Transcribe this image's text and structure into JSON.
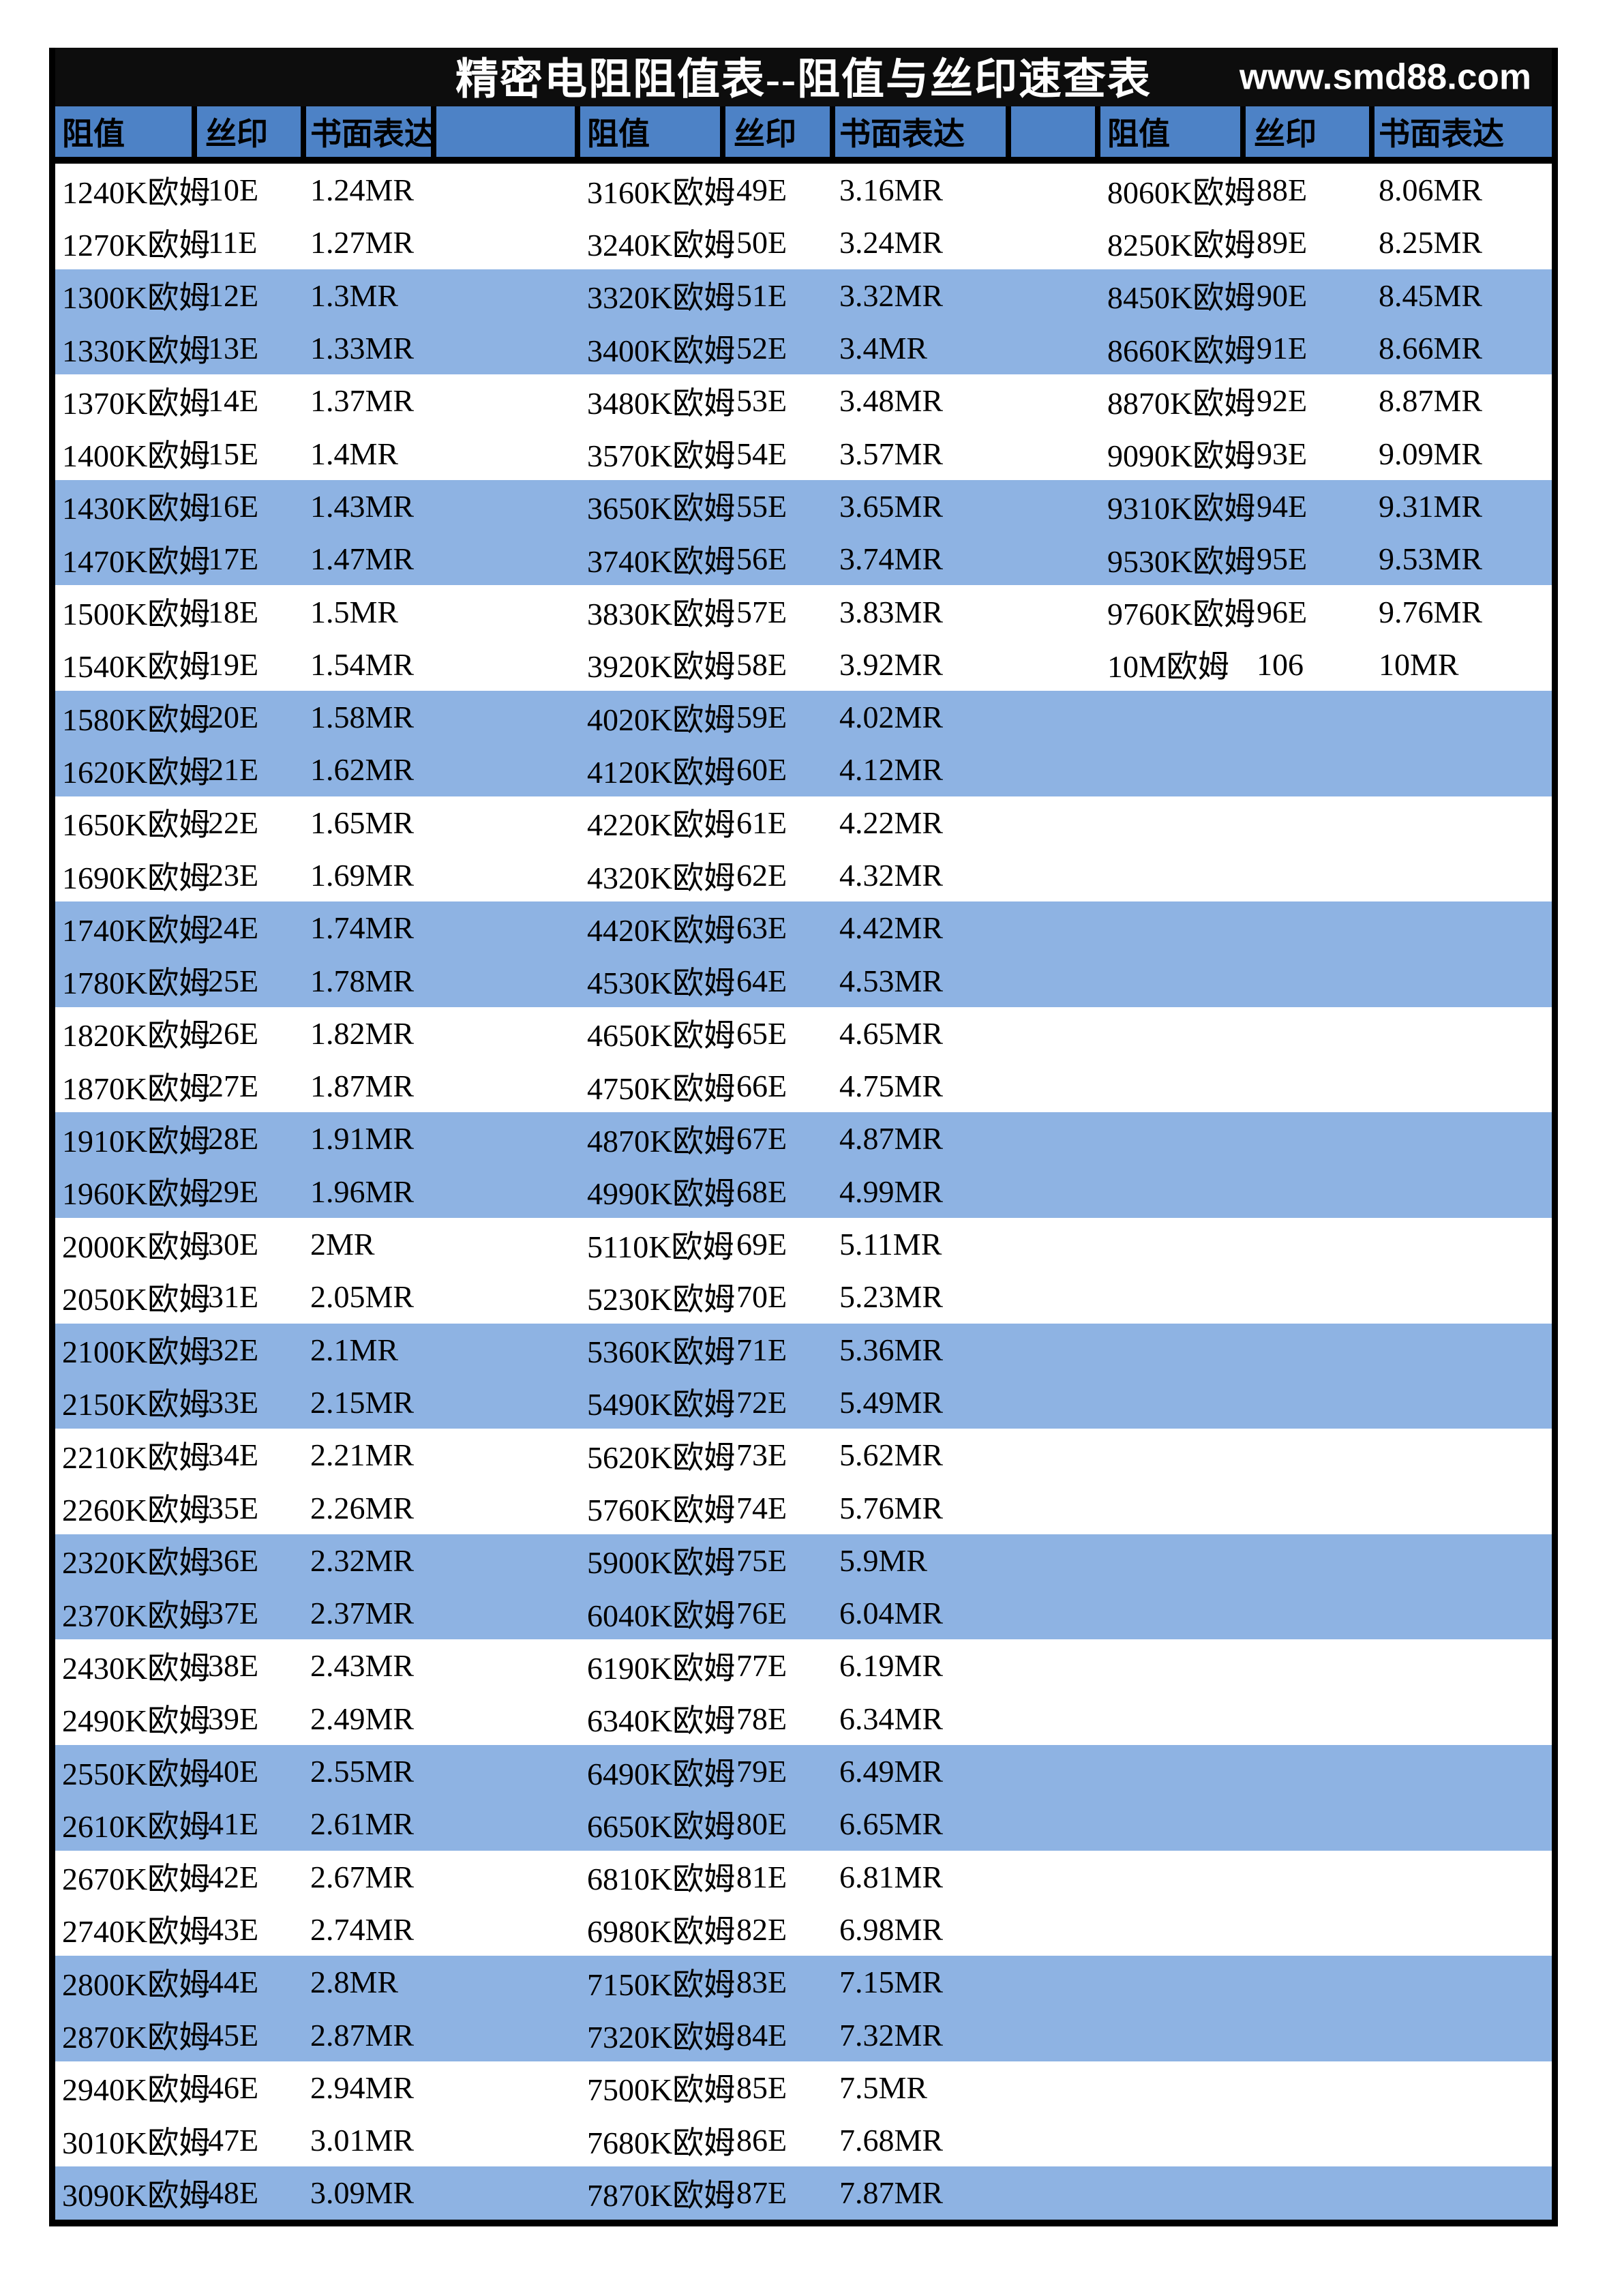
{
  "page_title": "精密电阻阻值表--阻值与丝印速查表",
  "website": "www.smd88.com",
  "header": {
    "labels": [
      "阻值",
      "丝印",
      "书面表达",
      "",
      "阻值",
      "丝印",
      "书面表达",
      "",
      "阻值",
      "丝印",
      "书面表达"
    ]
  },
  "colors": {
    "title_bar_bg": "#0d0d0d",
    "header_cell_blue": "#4d82c6",
    "row_band_blue": "#8eb3e3",
    "border_black": "#000000",
    "page_bg": "#ffffff",
    "title_text": "#ffffff",
    "body_text": "#000000"
  },
  "rows": [
    {
      "g1": [
        "1240K欧姆",
        "10E",
        "1.24MR"
      ],
      "g2": [
        "3160K欧姆",
        "49E",
        "3.16MR"
      ],
      "g3": [
        "8060K欧姆",
        "88E",
        "8.06MR"
      ]
    },
    {
      "g1": [
        "1270K欧姆",
        "11E",
        "1.27MR"
      ],
      "g2": [
        "3240K欧姆",
        "50E",
        "3.24MR"
      ],
      "g3": [
        "8250K欧姆",
        "89E",
        "8.25MR"
      ]
    },
    {
      "g1": [
        "1300K欧姆",
        "12E",
        "1.3MR"
      ],
      "g2": [
        "3320K欧姆",
        "51E",
        "3.32MR"
      ],
      "g3": [
        "8450K欧姆",
        "90E",
        "8.45MR"
      ]
    },
    {
      "g1": [
        "1330K欧姆",
        "13E",
        "1.33MR"
      ],
      "g2": [
        "3400K欧姆",
        "52E",
        "3.4MR"
      ],
      "g3": [
        "8660K欧姆",
        "91E",
        "8.66MR"
      ]
    },
    {
      "g1": [
        "1370K欧姆",
        "14E",
        "1.37MR"
      ],
      "g2": [
        "3480K欧姆",
        "53E",
        "3.48MR"
      ],
      "g3": [
        "8870K欧姆",
        "92E",
        "8.87MR"
      ]
    },
    {
      "g1": [
        "1400K欧姆",
        "15E",
        "1.4MR"
      ],
      "g2": [
        "3570K欧姆",
        "54E",
        "3.57MR"
      ],
      "g3": [
        "9090K欧姆",
        "93E",
        "9.09MR"
      ]
    },
    {
      "g1": [
        "1430K欧姆",
        "16E",
        "1.43MR"
      ],
      "g2": [
        "3650K欧姆",
        "55E",
        "3.65MR"
      ],
      "g3": [
        "9310K欧姆",
        "94E",
        "9.31MR"
      ]
    },
    {
      "g1": [
        "1470K欧姆",
        "17E",
        "1.47MR"
      ],
      "g2": [
        "3740K欧姆",
        "56E",
        "3.74MR"
      ],
      "g3": [
        "9530K欧姆",
        "95E",
        "9.53MR"
      ]
    },
    {
      "g1": [
        "1500K欧姆",
        "18E",
        "1.5MR"
      ],
      "g2": [
        "3830K欧姆",
        "57E",
        "3.83MR"
      ],
      "g3": [
        "9760K欧姆",
        "96E",
        "9.76MR"
      ]
    },
    {
      "g1": [
        "1540K欧姆",
        "19E",
        "1.54MR"
      ],
      "g2": [
        "3920K欧姆",
        "58E",
        "3.92MR"
      ],
      "g3": [
        "10M欧姆",
        "106",
        "10MR"
      ]
    },
    {
      "g1": [
        "1580K欧姆",
        "20E",
        "1.58MR"
      ],
      "g2": [
        "4020K欧姆",
        "59E",
        "4.02MR"
      ],
      "g3": [
        "",
        "",
        ""
      ]
    },
    {
      "g1": [
        "1620K欧姆",
        "21E",
        "1.62MR"
      ],
      "g2": [
        "4120K欧姆",
        "60E",
        "4.12MR"
      ],
      "g3": [
        "",
        "",
        ""
      ]
    },
    {
      "g1": [
        "1650K欧姆",
        "22E",
        "1.65MR"
      ],
      "g2": [
        "4220K欧姆",
        "61E",
        "4.22MR"
      ],
      "g3": [
        "",
        "",
        ""
      ]
    },
    {
      "g1": [
        "1690K欧姆",
        "23E",
        "1.69MR"
      ],
      "g2": [
        "4320K欧姆",
        "62E",
        "4.32MR"
      ],
      "g3": [
        "",
        "",
        ""
      ]
    },
    {
      "g1": [
        "1740K欧姆",
        "24E",
        "1.74MR"
      ],
      "g2": [
        "4420K欧姆",
        "63E",
        "4.42MR"
      ],
      "g3": [
        "",
        "",
        ""
      ]
    },
    {
      "g1": [
        "1780K欧姆",
        "25E",
        "1.78MR"
      ],
      "g2": [
        "4530K欧姆",
        "64E",
        "4.53MR"
      ],
      "g3": [
        "",
        "",
        ""
      ]
    },
    {
      "g1": [
        "1820K欧姆",
        "26E",
        "1.82MR"
      ],
      "g2": [
        "4650K欧姆",
        "65E",
        "4.65MR"
      ],
      "g3": [
        "",
        "",
        ""
      ]
    },
    {
      "g1": [
        "1870K欧姆",
        "27E",
        "1.87MR"
      ],
      "g2": [
        "4750K欧姆",
        "66E",
        "4.75MR"
      ],
      "g3": [
        "",
        "",
        ""
      ]
    },
    {
      "g1": [
        "1910K欧姆",
        "28E",
        "1.91MR"
      ],
      "g2": [
        "4870K欧姆",
        "67E",
        "4.87MR"
      ],
      "g3": [
        "",
        "",
        ""
      ]
    },
    {
      "g1": [
        "1960K欧姆",
        "29E",
        "1.96MR"
      ],
      "g2": [
        "4990K欧姆",
        "68E",
        "4.99MR"
      ],
      "g3": [
        "",
        "",
        ""
      ]
    },
    {
      "g1": [
        "2000K欧姆",
        "30E",
        "2MR"
      ],
      "g2": [
        "5110K欧姆",
        "69E",
        "5.11MR"
      ],
      "g3": [
        "",
        "",
        ""
      ]
    },
    {
      "g1": [
        "2050K欧姆",
        "31E",
        "2.05MR"
      ],
      "g2": [
        "5230K欧姆",
        "70E",
        "5.23MR"
      ],
      "g3": [
        "",
        "",
        ""
      ]
    },
    {
      "g1": [
        "2100K欧姆",
        "32E",
        "2.1MR"
      ],
      "g2": [
        "5360K欧姆",
        "71E",
        "5.36MR"
      ],
      "g3": [
        "",
        "",
        ""
      ]
    },
    {
      "g1": [
        "2150K欧姆",
        "33E",
        "2.15MR"
      ],
      "g2": [
        "5490K欧姆",
        "72E",
        "5.49MR"
      ],
      "g3": [
        "",
        "",
        ""
      ]
    },
    {
      "g1": [
        "2210K欧姆",
        "34E",
        "2.21MR"
      ],
      "g2": [
        "5620K欧姆",
        "73E",
        "5.62MR"
      ],
      "g3": [
        "",
        "",
        ""
      ]
    },
    {
      "g1": [
        "2260K欧姆",
        "35E",
        "2.26MR"
      ],
      "g2": [
        "5760K欧姆",
        "74E",
        "5.76MR"
      ],
      "g3": [
        "",
        "",
        ""
      ]
    },
    {
      "g1": [
        "2320K欧姆",
        "36E",
        "2.32MR"
      ],
      "g2": [
        "5900K欧姆",
        "75E",
        "5.9MR"
      ],
      "g3": [
        "",
        "",
        ""
      ]
    },
    {
      "g1": [
        "2370K欧姆",
        "37E",
        "2.37MR"
      ],
      "g2": [
        "6040K欧姆",
        "76E",
        "6.04MR"
      ],
      "g3": [
        "",
        "",
        ""
      ]
    },
    {
      "g1": [
        "2430K欧姆",
        "38E",
        "2.43MR"
      ],
      "g2": [
        "6190K欧姆",
        "77E",
        "6.19MR"
      ],
      "g3": [
        "",
        "",
        ""
      ]
    },
    {
      "g1": [
        "2490K欧姆",
        "39E",
        "2.49MR"
      ],
      "g2": [
        "6340K欧姆",
        "78E",
        "6.34MR"
      ],
      "g3": [
        "",
        "",
        ""
      ]
    },
    {
      "g1": [
        "2550K欧姆",
        "40E",
        "2.55MR"
      ],
      "g2": [
        "6490K欧姆",
        "79E",
        "6.49MR"
      ],
      "g3": [
        "",
        "",
        ""
      ]
    },
    {
      "g1": [
        "2610K欧姆",
        "41E",
        "2.61MR"
      ],
      "g2": [
        "6650K欧姆",
        "80E",
        "6.65MR"
      ],
      "g3": [
        "",
        "",
        ""
      ]
    },
    {
      "g1": [
        "2670K欧姆",
        "42E",
        "2.67MR"
      ],
      "g2": [
        "6810K欧姆",
        "81E",
        "6.81MR"
      ],
      "g3": [
        "",
        "",
        ""
      ]
    },
    {
      "g1": [
        "2740K欧姆",
        "43E",
        "2.74MR"
      ],
      "g2": [
        "6980K欧姆",
        "82E",
        "6.98MR"
      ],
      "g3": [
        "",
        "",
        ""
      ]
    },
    {
      "g1": [
        "2800K欧姆",
        "44E",
        "2.8MR"
      ],
      "g2": [
        "7150K欧姆",
        "83E",
        "7.15MR"
      ],
      "g3": [
        "",
        "",
        ""
      ]
    },
    {
      "g1": [
        "2870K欧姆",
        "45E",
        "2.87MR"
      ],
      "g2": [
        "7320K欧姆",
        "84E",
        "7.32MR"
      ],
      "g3": [
        "",
        "",
        ""
      ]
    },
    {
      "g1": [
        "2940K欧姆",
        "46E",
        "2.94MR"
      ],
      "g2": [
        "7500K欧姆",
        "85E",
        "7.5MR"
      ],
      "g3": [
        "",
        "",
        ""
      ]
    },
    {
      "g1": [
        "3010K欧姆",
        "47E",
        "3.01MR"
      ],
      "g2": [
        "7680K欧姆",
        "86E",
        "7.68MR"
      ],
      "g3": [
        "",
        "",
        ""
      ]
    },
    {
      "g1": [
        "3090K欧姆",
        "48E",
        "3.09MR"
      ],
      "g2": [
        "7870K欧姆",
        "87E",
        "7.87MR"
      ],
      "g3": [
        "",
        "",
        ""
      ]
    }
  ]
}
